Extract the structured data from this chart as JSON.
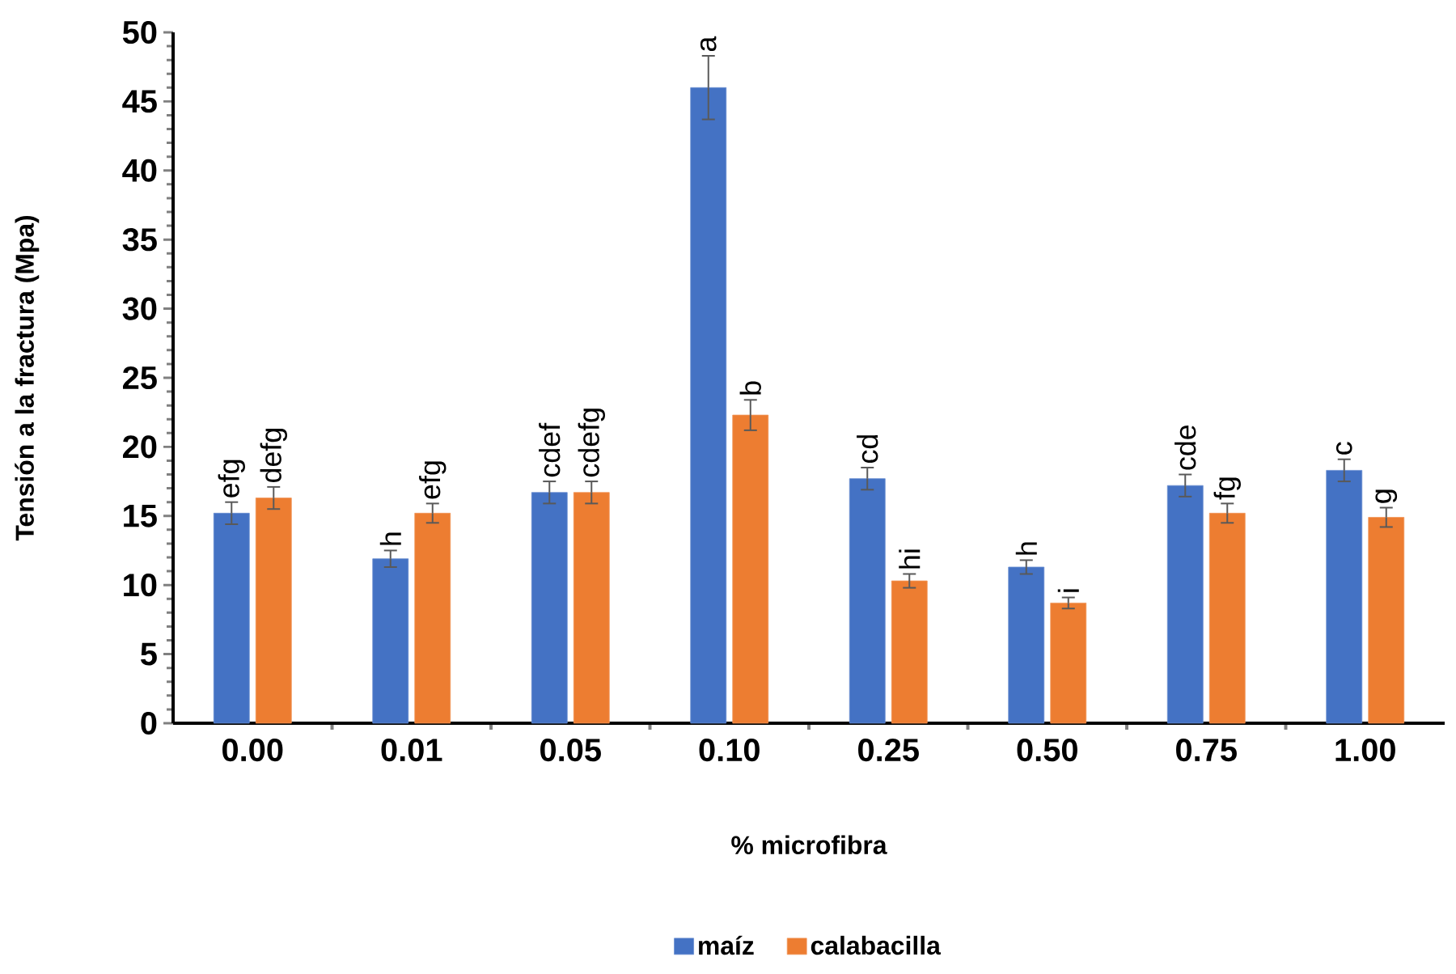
{
  "chart_data": {
    "type": "bar",
    "xlabel": "% microfibra",
    "ylabel": "Tensión a la fractura (Mpa)",
    "categories": [
      "0.00",
      "0.01",
      "0.05",
      "0.10",
      "0.25",
      "0.50",
      "0.75",
      "1.00"
    ],
    "series": [
      {
        "name": "maíz",
        "color": "#4472c4",
        "values": [
          15.2,
          11.9,
          16.7,
          46.0,
          17.7,
          11.3,
          17.2,
          18.3
        ],
        "errors": [
          0.8,
          0.6,
          0.8,
          2.3,
          0.8,
          0.5,
          0.8,
          0.8
        ],
        "value_labels": [
          "efg",
          "h",
          "cdef",
          "a",
          "cd",
          "h",
          "cde",
          "c"
        ]
      },
      {
        "name": "calabacilla",
        "color": "#ed7d31",
        "values": [
          16.3,
          15.2,
          16.7,
          22.3,
          10.3,
          8.7,
          15.2,
          14.9
        ],
        "errors": [
          0.8,
          0.7,
          0.8,
          1.1,
          0.5,
          0.4,
          0.7,
          0.7
        ],
        "value_labels": [
          "defg",
          "efg",
          "cdefg",
          "b",
          "hi",
          "i",
          "fg",
          "g"
        ]
      }
    ],
    "ylim": [
      0,
      50
    ],
    "yticks": [
      0,
      5,
      10,
      15,
      20,
      25,
      30,
      35,
      40,
      45,
      50
    ],
    "legend": "bottom"
  }
}
